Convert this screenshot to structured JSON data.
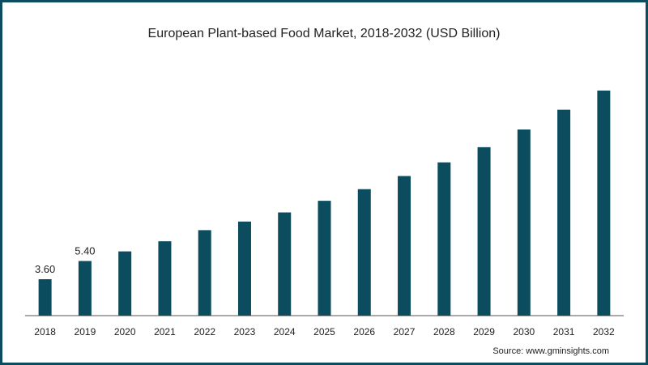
{
  "chart_data": {
    "type": "bar",
    "title": "European Plant-based Food Market, 2018-2032 (USD Billion)",
    "source": "Source: www.gminsights.com",
    "categories": [
      "2018",
      "2019",
      "2020",
      "2021",
      "2022",
      "2023",
      "2024",
      "2025",
      "2026",
      "2027",
      "2028",
      "2029",
      "2030",
      "2031",
      "2032"
    ],
    "values": [
      3.6,
      5.4,
      6.35,
      7.35,
      8.45,
      9.3,
      10.2,
      11.35,
      12.5,
      13.8,
      15.15,
      16.65,
      18.4,
      20.35,
      22.25
    ],
    "data_labels": [
      "3.60",
      "5.40",
      "",
      "",
      "",
      "",
      "",
      "",
      "",
      "",
      "",
      "",
      "",
      "",
      ""
    ],
    "ylim": [
      0,
      24
    ],
    "bar_color": "#0b4d5e",
    "grid": false
  }
}
